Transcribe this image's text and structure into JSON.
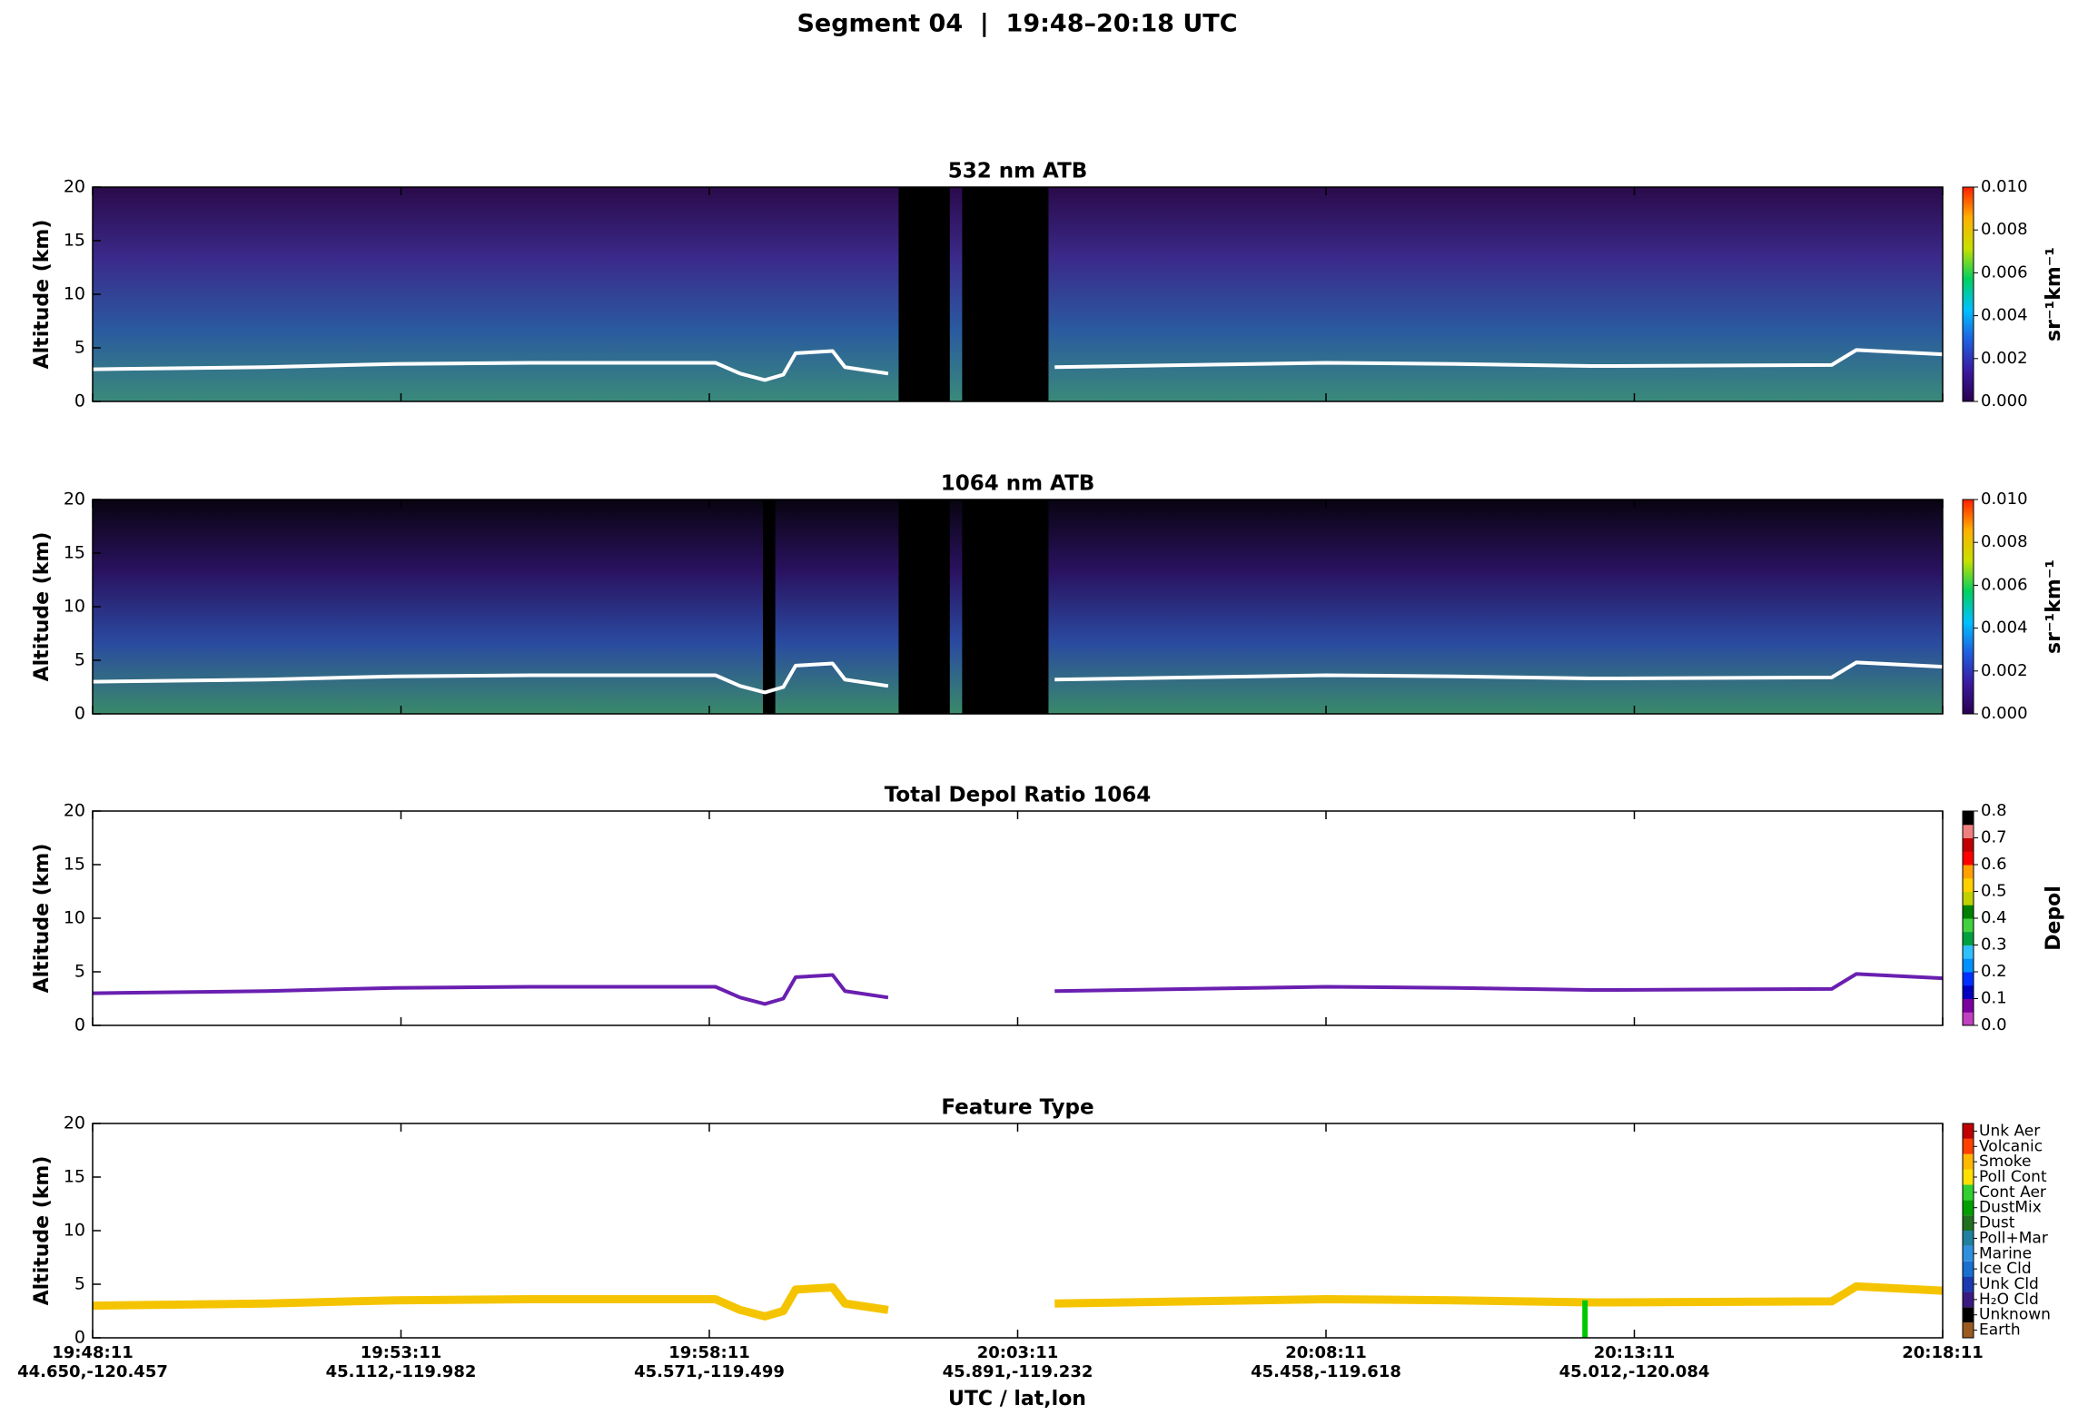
{
  "title": "Segment 04  |  19:48–20:18 UTC",
  "xaxis": {
    "xlabel": "UTC / lat,lon",
    "xlim": [
      0,
      30
    ],
    "xticks": [
      {
        "value": 0,
        "label": "19:48:11",
        "sublabel": "44.650,-120.457"
      },
      {
        "value": 5,
        "label": "19:53:11",
        "sublabel": "45.112,-119.982"
      },
      {
        "value": 10,
        "label": "19:58:11",
        "sublabel": "45.571,-119.499"
      },
      {
        "value": 15,
        "label": "20:03:11",
        "sublabel": "45.891,-119.232"
      },
      {
        "value": 20,
        "label": "20:08:11",
        "sublabel": "45.458,-119.618"
      },
      {
        "value": 25,
        "label": "20:13:11",
        "sublabel": "45.012,-120.084"
      },
      {
        "value": 30,
        "label": "20:18:11",
        "sublabel": ""
      }
    ]
  },
  "chart_data": [
    {
      "type": "curtain",
      "title": "532 nm ATB",
      "ylabel": "Altitude (km)",
      "ylim": [
        0,
        20
      ],
      "yticks": [
        0,
        5,
        10,
        15,
        20
      ],
      "background": [
        "#2a0a4a",
        "#3b2a8a",
        "#2a5aa0",
        "#3a8a7a"
      ],
      "no_data": [
        [
          13.07,
          13.9
        ],
        [
          14.1,
          15.5
        ]
      ],
      "layer": {
        "color": "#ffffff",
        "x": [
          0,
          2.8,
          4.9,
          7.1,
          10.1,
          10.5,
          10.9,
          11.2,
          11.4,
          12.0,
          12.2,
          12.9,
          13.0,
          15.6,
          17.8,
          20.0,
          22.1,
          24.3,
          28.2,
          28.6,
          30
        ],
        "values": [
          3.0,
          3.2,
          3.5,
          3.6,
          3.6,
          2.6,
          2.0,
          2.5,
          4.5,
          4.7,
          3.2,
          2.6,
          null,
          3.2,
          3.4,
          3.6,
          3.5,
          3.3,
          3.4,
          4.8,
          4.4
        ]
      },
      "colorbar": {
        "label": "sr⁻¹km⁻¹",
        "discrete": false,
        "lim": [
          0,
          0.01
        ],
        "ticks": [
          {
            "value": 0,
            "label": "0.000"
          },
          0.002,
          0.004,
          0.006,
          0.008,
          {
            "value": 0.01,
            "label": "0.010"
          }
        ],
        "colors": [
          "#2a0050",
          "#3a1aa0",
          "#1f5fe0",
          "#00c0ff",
          "#00d060",
          "#c8e000",
          "#ffb000",
          "#ff2000"
        ]
      }
    },
    {
      "type": "curtain",
      "title": "1064 nm ATB",
      "ylabel": "Altitude (km)",
      "ylim": [
        0,
        20
      ],
      "yticks": [
        0,
        5,
        10,
        15,
        20
      ],
      "background": [
        "#080410",
        "#2a1260",
        "#2a4aa0",
        "#3a8a6a"
      ],
      "no_data": [
        [
          10.87,
          11.07
        ],
        [
          13.07,
          13.9
        ],
        [
          14.1,
          15.5
        ]
      ],
      "layer": {
        "color": "#ffffff",
        "x": [
          0,
          2.8,
          4.9,
          7.1,
          10.1,
          10.5,
          10.9,
          11.2,
          11.4,
          12.0,
          12.2,
          12.9,
          13.0,
          15.6,
          17.8,
          20.0,
          22.1,
          24.3,
          28.2,
          28.6,
          30
        ],
        "values": [
          3.0,
          3.2,
          3.5,
          3.6,
          3.6,
          2.6,
          2.0,
          2.5,
          4.5,
          4.7,
          3.2,
          2.6,
          null,
          3.2,
          3.4,
          3.6,
          3.5,
          3.3,
          3.4,
          4.8,
          4.4
        ]
      },
      "colorbar": {
        "label": "sr⁻¹km⁻¹",
        "discrete": false,
        "lim": [
          0,
          0.01
        ],
        "ticks": [
          {
            "value": 0,
            "label": "0.000"
          },
          0.002,
          0.004,
          0.006,
          0.008,
          {
            "value": 0.01,
            "label": "0.010"
          }
        ],
        "colors": [
          "#2a0050",
          "#3a1aa0",
          "#1f5fe0",
          "#00c0ff",
          "#00d060",
          "#c8e000",
          "#ffb000",
          "#ff2000"
        ]
      }
    },
    {
      "type": "curtain",
      "title": "Total Depol Ratio 1064",
      "ylabel": "Altitude (km)",
      "ylim": [
        0,
        20
      ],
      "yticks": [
        0,
        5,
        10,
        15,
        20
      ],
      "layer": {
        "color": "#6a1fb0",
        "x": [
          0,
          2.8,
          4.9,
          7.1,
          10.1,
          10.5,
          10.9,
          11.2,
          11.4,
          12.0,
          12.2,
          12.9,
          13.0,
          15.6,
          17.8,
          20.0,
          22.1,
          24.3,
          28.2,
          28.6,
          30
        ],
        "values": [
          3.0,
          3.2,
          3.5,
          3.6,
          3.6,
          2.6,
          2.0,
          2.5,
          4.5,
          4.7,
          3.2,
          2.6,
          null,
          3.2,
          3.4,
          3.6,
          3.5,
          3.3,
          3.4,
          4.8,
          4.4
        ]
      },
      "colorbar": {
        "label": "Depol",
        "discrete": true,
        "lim": [
          0,
          0.8
        ],
        "ticks": [
          {
            "value": 0,
            "label": "0.0"
          },
          0.1,
          0.2,
          0.3,
          0.4,
          0.5,
          0.6,
          0.7,
          0.8
        ],
        "colors": [
          "#c040c0",
          "#7a00a0",
          "#0000c0",
          "#0030ff",
          "#0090ff",
          "#30c0ff",
          "#00a040",
          "#40d040",
          "#008000",
          "#c0d000",
          "#ffd000",
          "#ffa000",
          "#ff0000",
          "#c00000",
          "#f08080",
          "#000000"
        ]
      }
    },
    {
      "type": "curtain",
      "title": "Feature Type",
      "ylabel": "Altitude (km)",
      "ylim": [
        0,
        20
      ],
      "yticks": [
        0,
        5,
        10,
        15,
        20
      ],
      "layer": {
        "color": "#f5c400",
        "x": [
          0,
          2.8,
          4.9,
          7.1,
          10.1,
          10.5,
          10.9,
          11.2,
          11.4,
          12.0,
          12.2,
          12.9,
          13.0,
          15.6,
          17.8,
          20.0,
          22.1,
          24.3,
          28.2,
          28.6,
          30
        ],
        "values": [
          3.0,
          3.2,
          3.5,
          3.6,
          3.6,
          2.6,
          2.0,
          2.5,
          4.5,
          4.7,
          3.2,
          2.6,
          null,
          3.2,
          3.4,
          3.6,
          3.5,
          3.3,
          3.4,
          4.8,
          4.4
        ]
      },
      "column": {
        "x": 24.2,
        "top": 3.5,
        "color": "#00c800"
      },
      "colorbar": {
        "discrete": true,
        "categories": [
          "Earth",
          "Unknown",
          "H₂O Cld",
          "Unk Cld",
          "Ice Cld",
          "Marine",
          "Poll+Mar",
          "Dust",
          "DustMix",
          "Cont Aer",
          "Poll Cont",
          "Smoke",
          "Volcanic",
          "Unk Aer"
        ],
        "colors": [
          "#9a5a20",
          "#000000",
          "#3a1a80",
          "#1a3ab0",
          "#1a70d0",
          "#3090e0",
          "#2080a0",
          "#207020",
          "#00a000",
          "#30d030",
          "#ffe000",
          "#ffb800",
          "#ff4000",
          "#c00000"
        ]
      }
    }
  ]
}
